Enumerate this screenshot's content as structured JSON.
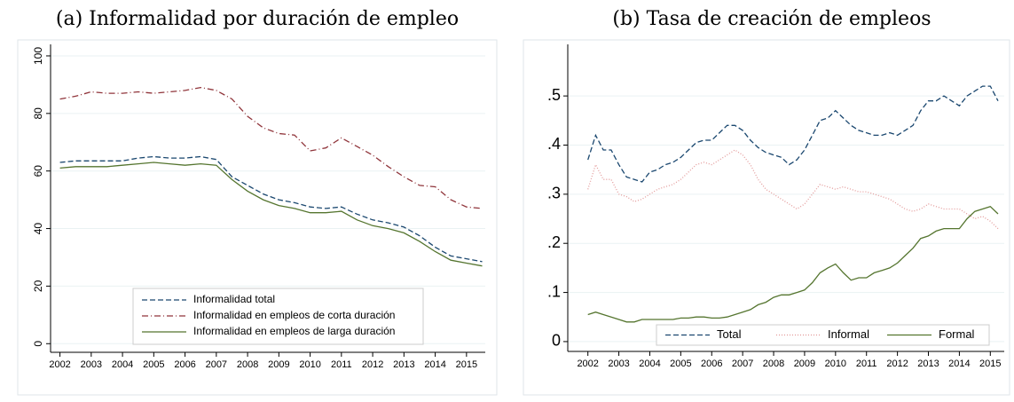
{
  "chart_data": [
    {
      "type": "line",
      "title": "(a) Informalidad por duración de empleo",
      "x": [
        2002,
        2002.5,
        2003,
        2003.5,
        2004,
        2004.5,
        2005,
        2005.5,
        2006,
        2006.5,
        2007,
        2007.5,
        2008,
        2008.5,
        2009,
        2009.5,
        2010,
        2010.5,
        2011,
        2011.5,
        2012,
        2012.5,
        2013,
        2013.5,
        2014,
        2014.5,
        2015,
        2015.5
      ],
      "series": [
        {
          "name": "Informalidad total",
          "color": "#1a476f",
          "dash": "6 3",
          "values": [
            63,
            63.5,
            63.5,
            63.5,
            63.5,
            64.5,
            65,
            64.5,
            64.5,
            65,
            64,
            58,
            55,
            52,
            50,
            49,
            47.5,
            47,
            47.5,
            45,
            43,
            42,
            40.5,
            37.5,
            33.5,
            30.5,
            29.5,
            28.5
          ]
        },
        {
          "name": "Informalidad en empleos de corta duración",
          "color": "#90353b",
          "dash": "7 3 1 3",
          "values": [
            85,
            86,
            87.5,
            87,
            87,
            87.5,
            87,
            87.5,
            88,
            89,
            88,
            85,
            79,
            75,
            73,
            72.5,
            67,
            68,
            71.5,
            68.5,
            65.5,
            61.5,
            58,
            55,
            54.5,
            50,
            47.5,
            47
          ]
        },
        {
          "name": "Informalidad en empleos de larga duración",
          "color": "#55752f",
          "dash": "none",
          "values": [
            61,
            61.5,
            61.5,
            61.5,
            62,
            62.5,
            63,
            62.5,
            62,
            62.5,
            62,
            57,
            53,
            50,
            48,
            47,
            45.5,
            45.5,
            46,
            43,
            41,
            40,
            38.5,
            35.5,
            32,
            29,
            28,
            27
          ]
        }
      ],
      "xlim": [
        2001.7,
        2015.6
      ],
      "xticks": [
        2002,
        2003,
        2004,
        2005,
        2006,
        2007,
        2008,
        2009,
        2010,
        2011,
        2012,
        2013,
        2014,
        2015
      ],
      "ylim": [
        -3,
        104
      ],
      "yticks": [
        0,
        20,
        40,
        60,
        80,
        100
      ],
      "grid": true,
      "legend": "bottom"
    },
    {
      "type": "line",
      "title": "(b) Tasa de creación de empleos",
      "x": [
        2002,
        2002.25,
        2002.5,
        2002.75,
        2003,
        2003.25,
        2003.5,
        2003.75,
        2004,
        2004.25,
        2004.5,
        2004.75,
        2005,
        2005.25,
        2005.5,
        2005.75,
        2006,
        2006.25,
        2006.5,
        2006.75,
        2007,
        2007.25,
        2007.5,
        2007.75,
        2008,
        2008.25,
        2008.5,
        2008.75,
        2009,
        2009.25,
        2009.5,
        2009.75,
        2010,
        2010.25,
        2010.5,
        2010.75,
        2011,
        2011.25,
        2011.5,
        2011.75,
        2012,
        2012.25,
        2012.5,
        2012.75,
        2013,
        2013.25,
        2013.5,
        2013.75,
        2014,
        2014.25,
        2014.5,
        2014.75,
        2015,
        2015.25
      ],
      "series": [
        {
          "name": "Total",
          "color": "#1a476f",
          "dash": "6 3",
          "values": [
            0.37,
            0.42,
            0.39,
            0.39,
            0.36,
            0.335,
            0.33,
            0.325,
            0.345,
            0.35,
            0.36,
            0.365,
            0.375,
            0.39,
            0.405,
            0.41,
            0.41,
            0.425,
            0.44,
            0.44,
            0.43,
            0.41,
            0.395,
            0.385,
            0.38,
            0.375,
            0.36,
            0.37,
            0.39,
            0.42,
            0.45,
            0.455,
            0.47,
            0.455,
            0.44,
            0.43,
            0.425,
            0.42,
            0.42,
            0.425,
            0.42,
            0.43,
            0.44,
            0.47,
            0.49,
            0.49,
            0.5,
            0.49,
            0.48,
            0.5,
            0.51,
            0.52,
            0.52,
            0.49
          ]
        },
        {
          "name": "Informal",
          "color": "#e39a9a",
          "dash": "1 2",
          "values": [
            0.31,
            0.36,
            0.33,
            0.33,
            0.3,
            0.295,
            0.285,
            0.29,
            0.3,
            0.31,
            0.315,
            0.32,
            0.33,
            0.345,
            0.36,
            0.365,
            0.36,
            0.37,
            0.38,
            0.39,
            0.38,
            0.36,
            0.33,
            0.31,
            0.3,
            0.29,
            0.28,
            0.27,
            0.28,
            0.3,
            0.32,
            0.315,
            0.31,
            0.315,
            0.31,
            0.305,
            0.305,
            0.3,
            0.295,
            0.29,
            0.28,
            0.27,
            0.265,
            0.27,
            0.28,
            0.275,
            0.27,
            0.27,
            0.27,
            0.26,
            0.25,
            0.255,
            0.245,
            0.23
          ]
        },
        {
          "name": "Formal",
          "color": "#55752f",
          "dash": "none",
          "values": [
            0.055,
            0.06,
            0.055,
            0.05,
            0.045,
            0.04,
            0.04,
            0.045,
            0.045,
            0.045,
            0.045,
            0.045,
            0.048,
            0.048,
            0.05,
            0.05,
            0.048,
            0.048,
            0.05,
            0.055,
            0.06,
            0.065,
            0.075,
            0.08,
            0.09,
            0.095,
            0.095,
            0.1,
            0.105,
            0.12,
            0.14,
            0.15,
            0.158,
            0.14,
            0.125,
            0.13,
            0.13,
            0.14,
            0.145,
            0.15,
            0.16,
            0.175,
            0.19,
            0.21,
            0.215,
            0.225,
            0.23,
            0.23,
            0.23,
            0.25,
            0.265,
            0.27,
            0.275,
            0.26
          ]
        }
      ],
      "xlim": [
        2001.35,
        2015.45
      ],
      "xticks": [
        2002,
        2003,
        2004,
        2005,
        2006,
        2007,
        2008,
        2009,
        2010,
        2011,
        2012,
        2013,
        2014,
        2015
      ],
      "ylim": [
        -0.02,
        0.605
      ],
      "yticks": [
        0,
        {
          "value": 0.1,
          "label": ".1"
        },
        {
          "value": 0.2,
          "label": ".2"
        },
        {
          "value": 0.3,
          "label": ".3"
        },
        {
          "value": 0.4,
          "label": ".4"
        },
        {
          "value": 0.5,
          "label": ".5"
        }
      ],
      "grid": true,
      "legend": "bottom"
    }
  ]
}
